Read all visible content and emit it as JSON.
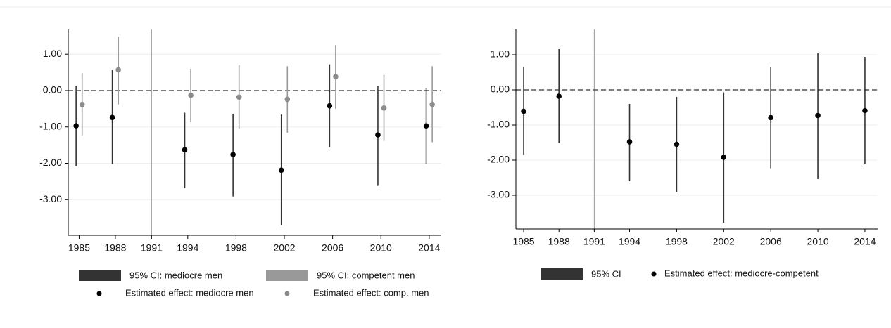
{
  "chart_data": [
    {
      "type": "errorbar",
      "xlim": [
        1984.1,
        2015
      ],
      "xticks": [
        1985,
        1988,
        1991,
        1994,
        1998,
        2002,
        2006,
        2010,
        2014
      ],
      "ylim": [
        -3.98,
        1.68
      ],
      "yticks": [
        {
          "value": 1,
          "label": "1.00"
        },
        {
          "value": 0,
          "label": "0.00"
        },
        {
          "value": -1,
          "label": "-1.00"
        },
        {
          "value": -2,
          "label": "-2.00"
        },
        {
          "value": -3,
          "label": "-3.00"
        }
      ],
      "grid": true,
      "hline": 0,
      "vlines": [
        1991
      ],
      "series": [
        {
          "name": "Estimated effect: mediocre men",
          "ci_name": "95% CI: mediocre men",
          "color": "#000000",
          "ci_color": "#333333",
          "x": [
            1984.75,
            1987.75,
            1993.75,
            1997.75,
            2001.75,
            2005.75,
            2009.75,
            2013.75
          ],
          "values": [
            -0.97,
            -0.74,
            -1.63,
            -1.76,
            -2.19,
            -0.42,
            -1.22,
            -0.97
          ],
          "lower": [
            -2.07,
            -2.02,
            -2.68,
            -2.91,
            -3.7,
            -1.56,
            -2.62,
            -2.02
          ],
          "upper": [
            0.13,
            0.57,
            -0.61,
            -0.64,
            -0.66,
            0.72,
            0.13,
            0.07
          ]
        },
        {
          "name": "Estimated effect: comp. men",
          "ci_name": "95% CI: competent men",
          "color": "#8c8c8c",
          "ci_color": "#999999",
          "x": [
            1985.25,
            1988.25,
            1994.25,
            1998.25,
            2002.25,
            2006.25,
            2010.25,
            2014.25
          ],
          "values": [
            -0.38,
            0.57,
            -0.13,
            -0.18,
            -0.24,
            0.38,
            -0.48,
            -0.38
          ],
          "lower": [
            -1.23,
            -0.38,
            -0.87,
            -1.04,
            -1.16,
            -0.5,
            -1.38,
            -1.42
          ],
          "upper": [
            0.48,
            1.48,
            0.6,
            0.7,
            0.67,
            1.25,
            0.43,
            0.67
          ]
        }
      ]
    },
    {
      "type": "errorbar",
      "xlim": [
        1984.34,
        2015.08
      ],
      "xticks": [
        1985,
        1988,
        1991,
        1994,
        1998,
        2002,
        2006,
        2010,
        2014
      ],
      "ylim": [
        -3.96,
        1.72
      ],
      "yticks": [
        {
          "value": 1,
          "label": "1.00"
        },
        {
          "value": 0,
          "label": "0.00"
        },
        {
          "value": -1,
          "label": "-1.00"
        },
        {
          "value": -2,
          "label": "-2.00"
        },
        {
          "value": -3,
          "label": "-3.00"
        }
      ],
      "grid": true,
      "hline": 0,
      "vlines": [
        1991
      ],
      "series": [
        {
          "name": "Estimated effect: mediocre-competent",
          "ci_name": "95% CI",
          "color": "#000000",
          "ci_color": "#333333",
          "x": [
            1985,
            1988,
            1994,
            1998,
            2002,
            2006,
            2010,
            2014
          ],
          "values": [
            -0.61,
            -0.18,
            -1.48,
            -1.55,
            -1.92,
            -0.79,
            -0.73,
            -0.59
          ],
          "lower": [
            -1.85,
            -1.51,
            -2.6,
            -2.9,
            -3.78,
            -2.23,
            -2.54,
            -2.12
          ],
          "upper": [
            0.65,
            1.16,
            -0.4,
            -0.2,
            -0.07,
            0.65,
            1.06,
            0.94
          ]
        }
      ]
    }
  ]
}
